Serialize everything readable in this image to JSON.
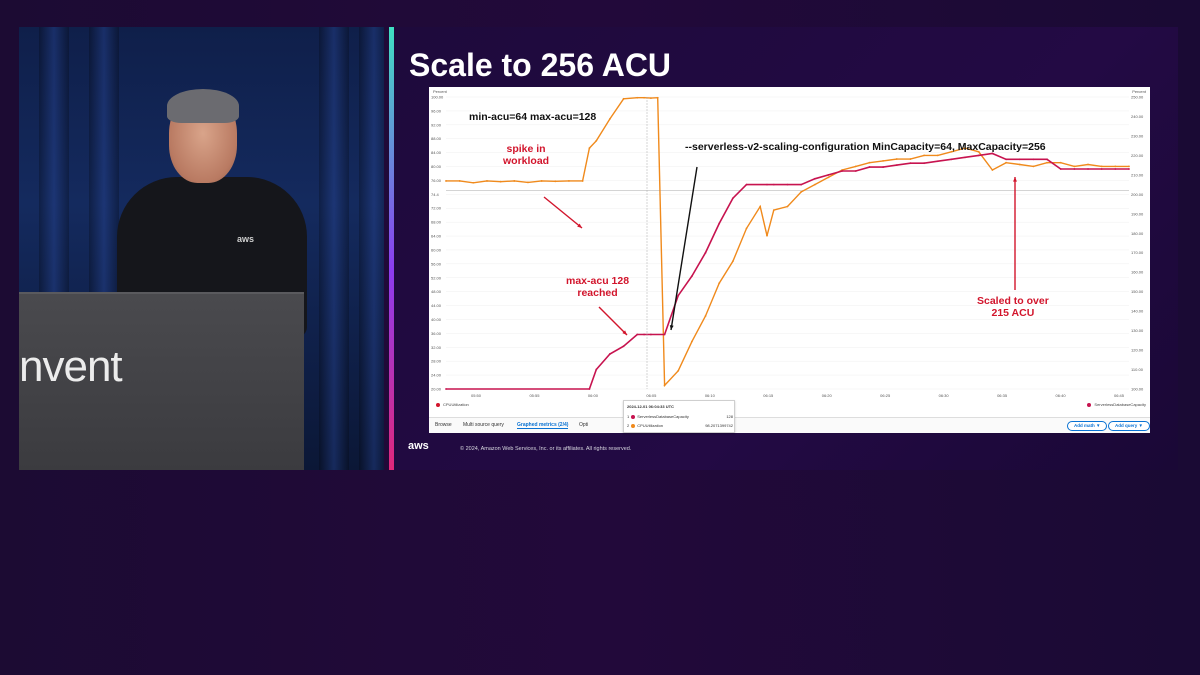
{
  "speaker_panel": {
    "podium_text": "nvent",
    "shirt_logo": "aws"
  },
  "slide": {
    "title": "Scale to 256 ACU",
    "footer_logo": "aws",
    "footer_text": "© 2024, Amazon Web Services, Inc. or its affiliates. All rights reserved."
  },
  "console": {
    "left_axis_unit": "Percent",
    "right_axis_unit": "Percent",
    "legend_left": "CPUUtilization",
    "legend_right": "ServerlessDatabaseCapacity",
    "tabs": [
      {
        "label": "Browse"
      },
      {
        "label": "Multi source query"
      },
      {
        "label": "Graphed metrics (2/4)"
      },
      {
        "label": "Opti"
      }
    ],
    "add_math": "Add math ▼",
    "add_query": "Add query ▼",
    "tooltip": {
      "timestamp": "2024-12-01 06:04:33 UTC",
      "rows": [
        {
          "idx": "1",
          "name": "ServerlessDatabaseCapacity",
          "value": "128"
        },
        {
          "idx": "2",
          "name": "CPUUtilization",
          "value": "98.2071399742"
        }
      ],
      "crosshair_label": "12:47 06:04:33"
    },
    "colors": {
      "cpu": "#f08a1c",
      "capacity": "#c7134f",
      "annotation_red": "#d2152c",
      "accent_blue": "#0972d3"
    }
  },
  "annotations": {
    "min_max": "min-acu=64 max-acu=128",
    "spike_line1": "spike in",
    "spike_line2": "workload",
    "scaling_config": "--serverless-v2-scaling-configuration MinCapacity=64, MaxCapacity=256",
    "maxacu_line1": "max-acu 128",
    "maxacu_line2": "reached",
    "scaled_line1": "Scaled to over",
    "scaled_line2": "215 ACU"
  },
  "chart_data": {
    "type": "line",
    "x_ticks": [
      "05:50",
      "05:55",
      "06:00",
      "06:05",
      "06:10",
      "06:15",
      "06:20",
      "06:25",
      "06:30",
      "06:35",
      "06:40",
      "06:45"
    ],
    "left_axis": {
      "label": "Percent",
      "ticks": [
        "20.00",
        "24.00",
        "28.00",
        "32.00",
        "36.00",
        "40.00",
        "44.00",
        "48.00",
        "52.00",
        "56.00",
        "60.00",
        "64.00",
        "68.00",
        "72.00",
        "74.4",
        "76.00",
        "80.00",
        "84.00",
        "88.00",
        "92.00",
        "96.00",
        "100.00"
      ]
    },
    "right_axis": {
      "label": "Percent",
      "ticks": [
        "100.00",
        "110.00",
        "120.00",
        "130.00",
        "140.00",
        "150.00",
        "160.00",
        "170.00",
        "180.00",
        "190.00",
        "200.00",
        "210.00",
        "220.00",
        "230.00",
        "240.00",
        "250.00"
      ]
    },
    "series": [
      {
        "name": "CPUUtilization",
        "axis": "left",
        "x": [
          0,
          2,
          4,
          6,
          8,
          10,
          12,
          14,
          16,
          18,
          20,
          21,
          22,
          24,
          26,
          28,
          29,
          30,
          31,
          32,
          34,
          36,
          38,
          40,
          42,
          44,
          46,
          47,
          48,
          50,
          52,
          54,
          56,
          58,
          60,
          62,
          64,
          66,
          68,
          70,
          72,
          74,
          76,
          78,
          80,
          82,
          84,
          86,
          88,
          90,
          92,
          94,
          96,
          98,
          100
        ],
        "y": [
          77,
          77,
          76.5,
          77,
          76.8,
          77,
          76.6,
          77,
          76.9,
          77,
          77,
          86,
          88,
          94,
          99.5,
          99.8,
          99.8,
          99.7,
          99.8,
          21,
          25,
          33,
          40,
          49,
          55,
          64,
          70,
          62,
          69,
          70,
          74,
          76,
          78,
          80,
          81,
          82,
          82.5,
          83,
          83,
          84,
          84,
          85,
          86,
          85,
          80,
          82,
          81.5,
          81,
          82,
          82,
          81,
          81.5,
          81,
          81,
          81
        ]
      },
      {
        "name": "ServerlessDatabaseCapacity",
        "axis": "right",
        "x": [
          0,
          21,
          22,
          24,
          26,
          28,
          29,
          30,
          32,
          34,
          36,
          38,
          40,
          42,
          44,
          47,
          48,
          50,
          52,
          54,
          56,
          58,
          60,
          62,
          64,
          66,
          68,
          70,
          72,
          74,
          76,
          78,
          80,
          82,
          84,
          86,
          88,
          90,
          92,
          94,
          96,
          98,
          100
        ],
        "y": [
          100,
          100,
          110,
          118,
          122,
          128,
          128,
          128,
          128,
          148,
          158,
          170,
          185,
          198,
          205,
          205,
          205,
          205,
          205,
          208,
          210,
          212,
          212,
          214,
          214,
          215,
          216,
          216,
          217,
          218,
          219,
          220,
          221,
          218,
          218,
          218,
          218,
          213,
          213,
          213,
          213,
          213,
          213
        ]
      }
    ],
    "grid": true,
    "legend": "bottom"
  }
}
